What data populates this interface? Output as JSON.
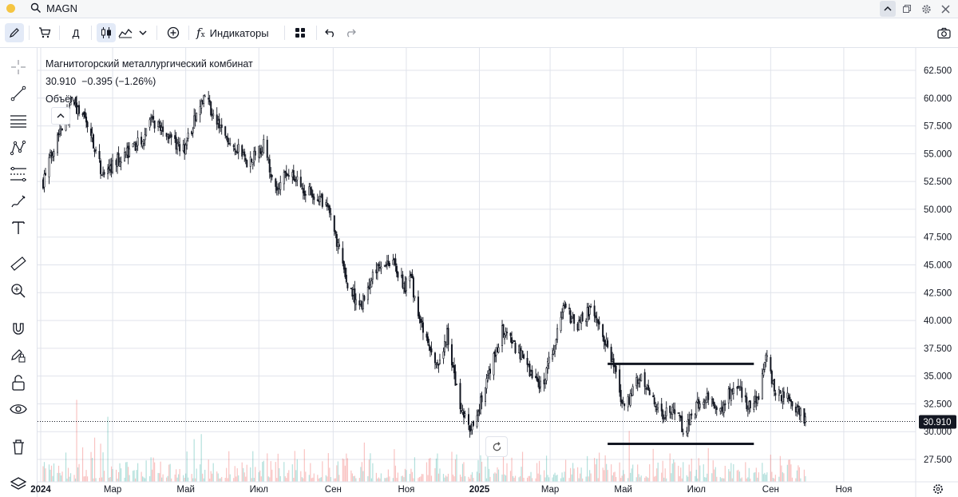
{
  "header": {
    "symbol": "MAGN"
  },
  "toolbar": {
    "interval_label": "Д",
    "indicators_label": "Индикаторы"
  },
  "legend": {
    "title": "Магнитогорский металлургический комбинат",
    "price": "30.910",
    "change": "−0.395 (−1.26%)",
    "volume_label": "Объём"
  },
  "chart_data": {
    "type": "candlestick",
    "symbol": "MAGN",
    "y_ticks": [
      "62.500",
      "60.000",
      "57.500",
      "55.000",
      "52.500",
      "50.000",
      "47.500",
      "45.000",
      "42.500",
      "40.000",
      "37.500",
      "35.000",
      "32.500",
      "30.000",
      "27.500"
    ],
    "x_ticks": [
      "2024",
      "Мар",
      "Май",
      "Июл",
      "Сен",
      "Ноя",
      "2025",
      "Мар",
      "Май",
      "Июл",
      "Сен",
      "Ноя"
    ],
    "bold_x_ticks": [
      "2024",
      "2025"
    ],
    "ylim": [
      26.5,
      63.5
    ],
    "last_price": 30.91,
    "last_price_label": "30.910",
    "price_path": [
      [
        "2024-01-03",
        52.5
      ],
      [
        "2024-01-15",
        56.8
      ],
      [
        "2024-01-28",
        59.5
      ],
      [
        "2024-02-10",
        57.5
      ],
      [
        "2024-02-22",
        52.8
      ],
      [
        "2024-03-05",
        54.5
      ],
      [
        "2024-03-20",
        55.5
      ],
      [
        "2024-04-02",
        57.8
      ],
      [
        "2024-04-15",
        57.0
      ],
      [
        "2024-04-28",
        55.0
      ],
      [
        "2024-05-10",
        58.5
      ],
      [
        "2024-05-18",
        60.0
      ],
      [
        "2024-05-28",
        57.5
      ],
      [
        "2024-06-10",
        56.0
      ],
      [
        "2024-06-22",
        54.0
      ],
      [
        "2024-07-05",
        55.8
      ],
      [
        "2024-07-15",
        51.5
      ],
      [
        "2024-07-25",
        53.5
      ],
      [
        "2024-08-05",
        52.0
      ],
      [
        "2024-08-18",
        51.0
      ],
      [
        "2024-08-28",
        50.0
      ],
      [
        "2024-09-05",
        46.5
      ],
      [
        "2024-09-15",
        42.5
      ],
      [
        "2024-09-25",
        41.5
      ],
      [
        "2024-10-08",
        45.0
      ],
      [
        "2024-10-20",
        45.5
      ],
      [
        "2024-10-30",
        43.0
      ],
      [
        "2024-11-05",
        43.8
      ],
      [
        "2024-11-12",
        40.0
      ],
      [
        "2024-11-20",
        37.5
      ],
      [
        "2024-11-28",
        35.5
      ],
      [
        "2024-12-05",
        38.8
      ],
      [
        "2024-12-15",
        32.5
      ],
      [
        "2024-12-25",
        30.0
      ],
      [
        "2024-12-30",
        31.5
      ],
      [
        "2025-01-10",
        35.5
      ],
      [
        "2025-01-20",
        39.0
      ],
      [
        "2025-02-01",
        37.5
      ],
      [
        "2025-02-12",
        35.5
      ],
      [
        "2025-02-22",
        34.0
      ],
      [
        "2025-03-05",
        38.0
      ],
      [
        "2025-03-12",
        41.5
      ],
      [
        "2025-03-22",
        39.5
      ],
      [
        "2025-04-05",
        41.0
      ],
      [
        "2025-04-15",
        38.5
      ],
      [
        "2025-04-25",
        35.0
      ],
      [
        "2025-05-02",
        31.8
      ],
      [
        "2025-05-12",
        35.0
      ],
      [
        "2025-05-22",
        34.0
      ],
      [
        "2025-06-02",
        31.5
      ],
      [
        "2025-06-12",
        31.8
      ],
      [
        "2025-06-22",
        30.0
      ],
      [
        "2025-07-02",
        32.5
      ],
      [
        "2025-07-12",
        33.0
      ],
      [
        "2025-07-22",
        31.8
      ],
      [
        "2025-08-02",
        34.5
      ],
      [
        "2025-08-12",
        32.5
      ],
      [
        "2025-08-22",
        32.8
      ],
      [
        "2025-08-28",
        36.8
      ],
      [
        "2025-09-05",
        33.5
      ],
      [
        "2025-09-15",
        33.0
      ],
      [
        "2025-09-25",
        32.0
      ],
      [
        "2025-09-30",
        30.91
      ]
    ],
    "drawn_lines": [
      {
        "from": [
          "2025-04-18",
          36.1
        ],
        "to": [
          "2025-08-18",
          36.1
        ]
      },
      {
        "from": [
          "2025-04-18",
          28.9
        ],
        "to": [
          "2025-08-18",
          28.9
        ]
      }
    ],
    "colors": {
      "up": "#26a69a",
      "down": "#ef5350",
      "candle": "#131722",
      "grid": "#e0e3eb",
      "price_label_bg": "#131722"
    }
  }
}
